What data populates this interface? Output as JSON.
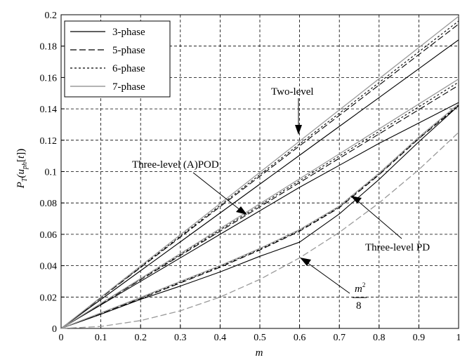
{
  "chart_data": {
    "type": "line",
    "xlabel": "m",
    "ylabel": "P_T(u_ph[t])",
    "xlim": [
      0,
      1
    ],
    "ylim": [
      0,
      0.2
    ],
    "xticks": [
      "0",
      "0.1",
      "0.2",
      "0.3",
      "0.4",
      "0.5",
      "0.6",
      "0.7",
      "0.8",
      "0.9",
      "1"
    ],
    "yticks": [
      "0",
      "0.02",
      "0.04",
      "0.06",
      "0.08",
      "0.1",
      "0.12",
      "0.14",
      "0.16",
      "0.18",
      "0.2"
    ],
    "grid": true,
    "legend_position": "top-left",
    "legend": [
      {
        "label": "3-phase",
        "style": "solid",
        "color": "#000000"
      },
      {
        "label": "5-phase",
        "style": "dashed",
        "color": "#000000"
      },
      {
        "label": "6-phase",
        "style": "dotted",
        "color": "#000000"
      },
      {
        "label": "7-phase",
        "style": "solid",
        "color": "#9a9a9a"
      }
    ],
    "x": [
      0,
      0.1,
      0.2,
      0.3,
      0.4,
      0.5,
      0.6,
      0.7,
      0.8,
      0.9,
      1.0
    ],
    "groups": [
      {
        "name": "Two-level",
        "series": [
          {
            "phase": "3-phase",
            "values": [
              0,
              0.0184,
              0.0368,
              0.0552,
              0.0736,
              0.092,
              0.1104,
              0.1288,
              0.1472,
              0.1656,
              0.184
            ]
          },
          {
            "phase": "5-phase",
            "values": [
              0,
              0.0194,
              0.0388,
              0.0582,
              0.0776,
              0.097,
              0.1164,
              0.1358,
              0.1552,
              0.1746,
              0.194
            ]
          },
          {
            "phase": "6-phase",
            "values": [
              0,
              0.0196,
              0.0392,
              0.0588,
              0.0784,
              0.098,
              0.1176,
              0.1372,
              0.1568,
              0.1764,
              0.196
            ]
          },
          {
            "phase": "7-phase",
            "values": [
              0,
              0.0199,
              0.0398,
              0.0597,
              0.0796,
              0.0995,
              0.1194,
              0.1393,
              0.1592,
              0.1791,
              0.199
            ]
          }
        ]
      },
      {
        "name": "Three-level (A)POD",
        "series": [
          {
            "phase": "3-phase",
            "values": [
              0,
              0.015,
              0.03,
              0.045,
              0.06,
              0.075,
              0.09,
              0.104,
              0.118,
              0.131,
              0.144
            ]
          },
          {
            "phase": "5-phase",
            "values": [
              0,
              0.0155,
              0.031,
              0.0465,
              0.062,
              0.0775,
              0.093,
              0.1085,
              0.124,
              0.1395,
              0.155
            ]
          },
          {
            "phase": "6-phase",
            "values": [
              0,
              0.0157,
              0.0314,
              0.0471,
              0.0628,
              0.0785,
              0.0942,
              0.1099,
              0.1256,
              0.1413,
              0.157
            ]
          },
          {
            "phase": "7-phase",
            "values": [
              0,
              0.0159,
              0.0318,
              0.0477,
              0.0636,
              0.0795,
              0.0954,
              0.1113,
              0.1272,
              0.1431,
              0.159
            ]
          }
        ]
      },
      {
        "name": "Three-level PD",
        "series": [
          {
            "phase": "3-phase",
            "values": [
              0,
              0.009,
              0.0185,
              0.027,
              0.036,
              0.046,
              0.055,
              0.073,
              0.095,
              0.119,
              0.142
            ]
          },
          {
            "phase": "5-phase",
            "values": [
              0,
              0.0095,
              0.019,
              0.029,
              0.039,
              0.05,
              0.062,
              0.077,
              0.098,
              0.121,
              0.142
            ]
          },
          {
            "phase": "6-phase",
            "values": [
              0,
              0.0097,
              0.0195,
              0.0295,
              0.0395,
              0.0505,
              0.0625,
              0.0775,
              0.0985,
              0.1215,
              0.1425
            ]
          },
          {
            "phase": "7-phase",
            "values": [
              0,
              0.0099,
              0.0198,
              0.03,
              0.04,
              0.051,
              0.063,
              0.078,
              0.099,
              0.122,
              0.143
            ]
          }
        ]
      },
      {
        "name": "m^2/8",
        "series": [
          {
            "phase": "m^2/8",
            "style": "dashed",
            "color": "#9a9a9a",
            "values": [
              0,
              0.00125,
              0.005,
              0.01125,
              0.02,
              0.03125,
              0.045,
              0.06125,
              0.08,
              0.10125,
              0.125
            ]
          }
        ]
      }
    ],
    "annotations": {
      "two_level": "Two-level",
      "three_level_apod": "Three-level (A)POD",
      "three_level_pd": "Three-level PD",
      "m2_num": "m",
      "m2_exp": "2",
      "m2_den": "8"
    }
  }
}
